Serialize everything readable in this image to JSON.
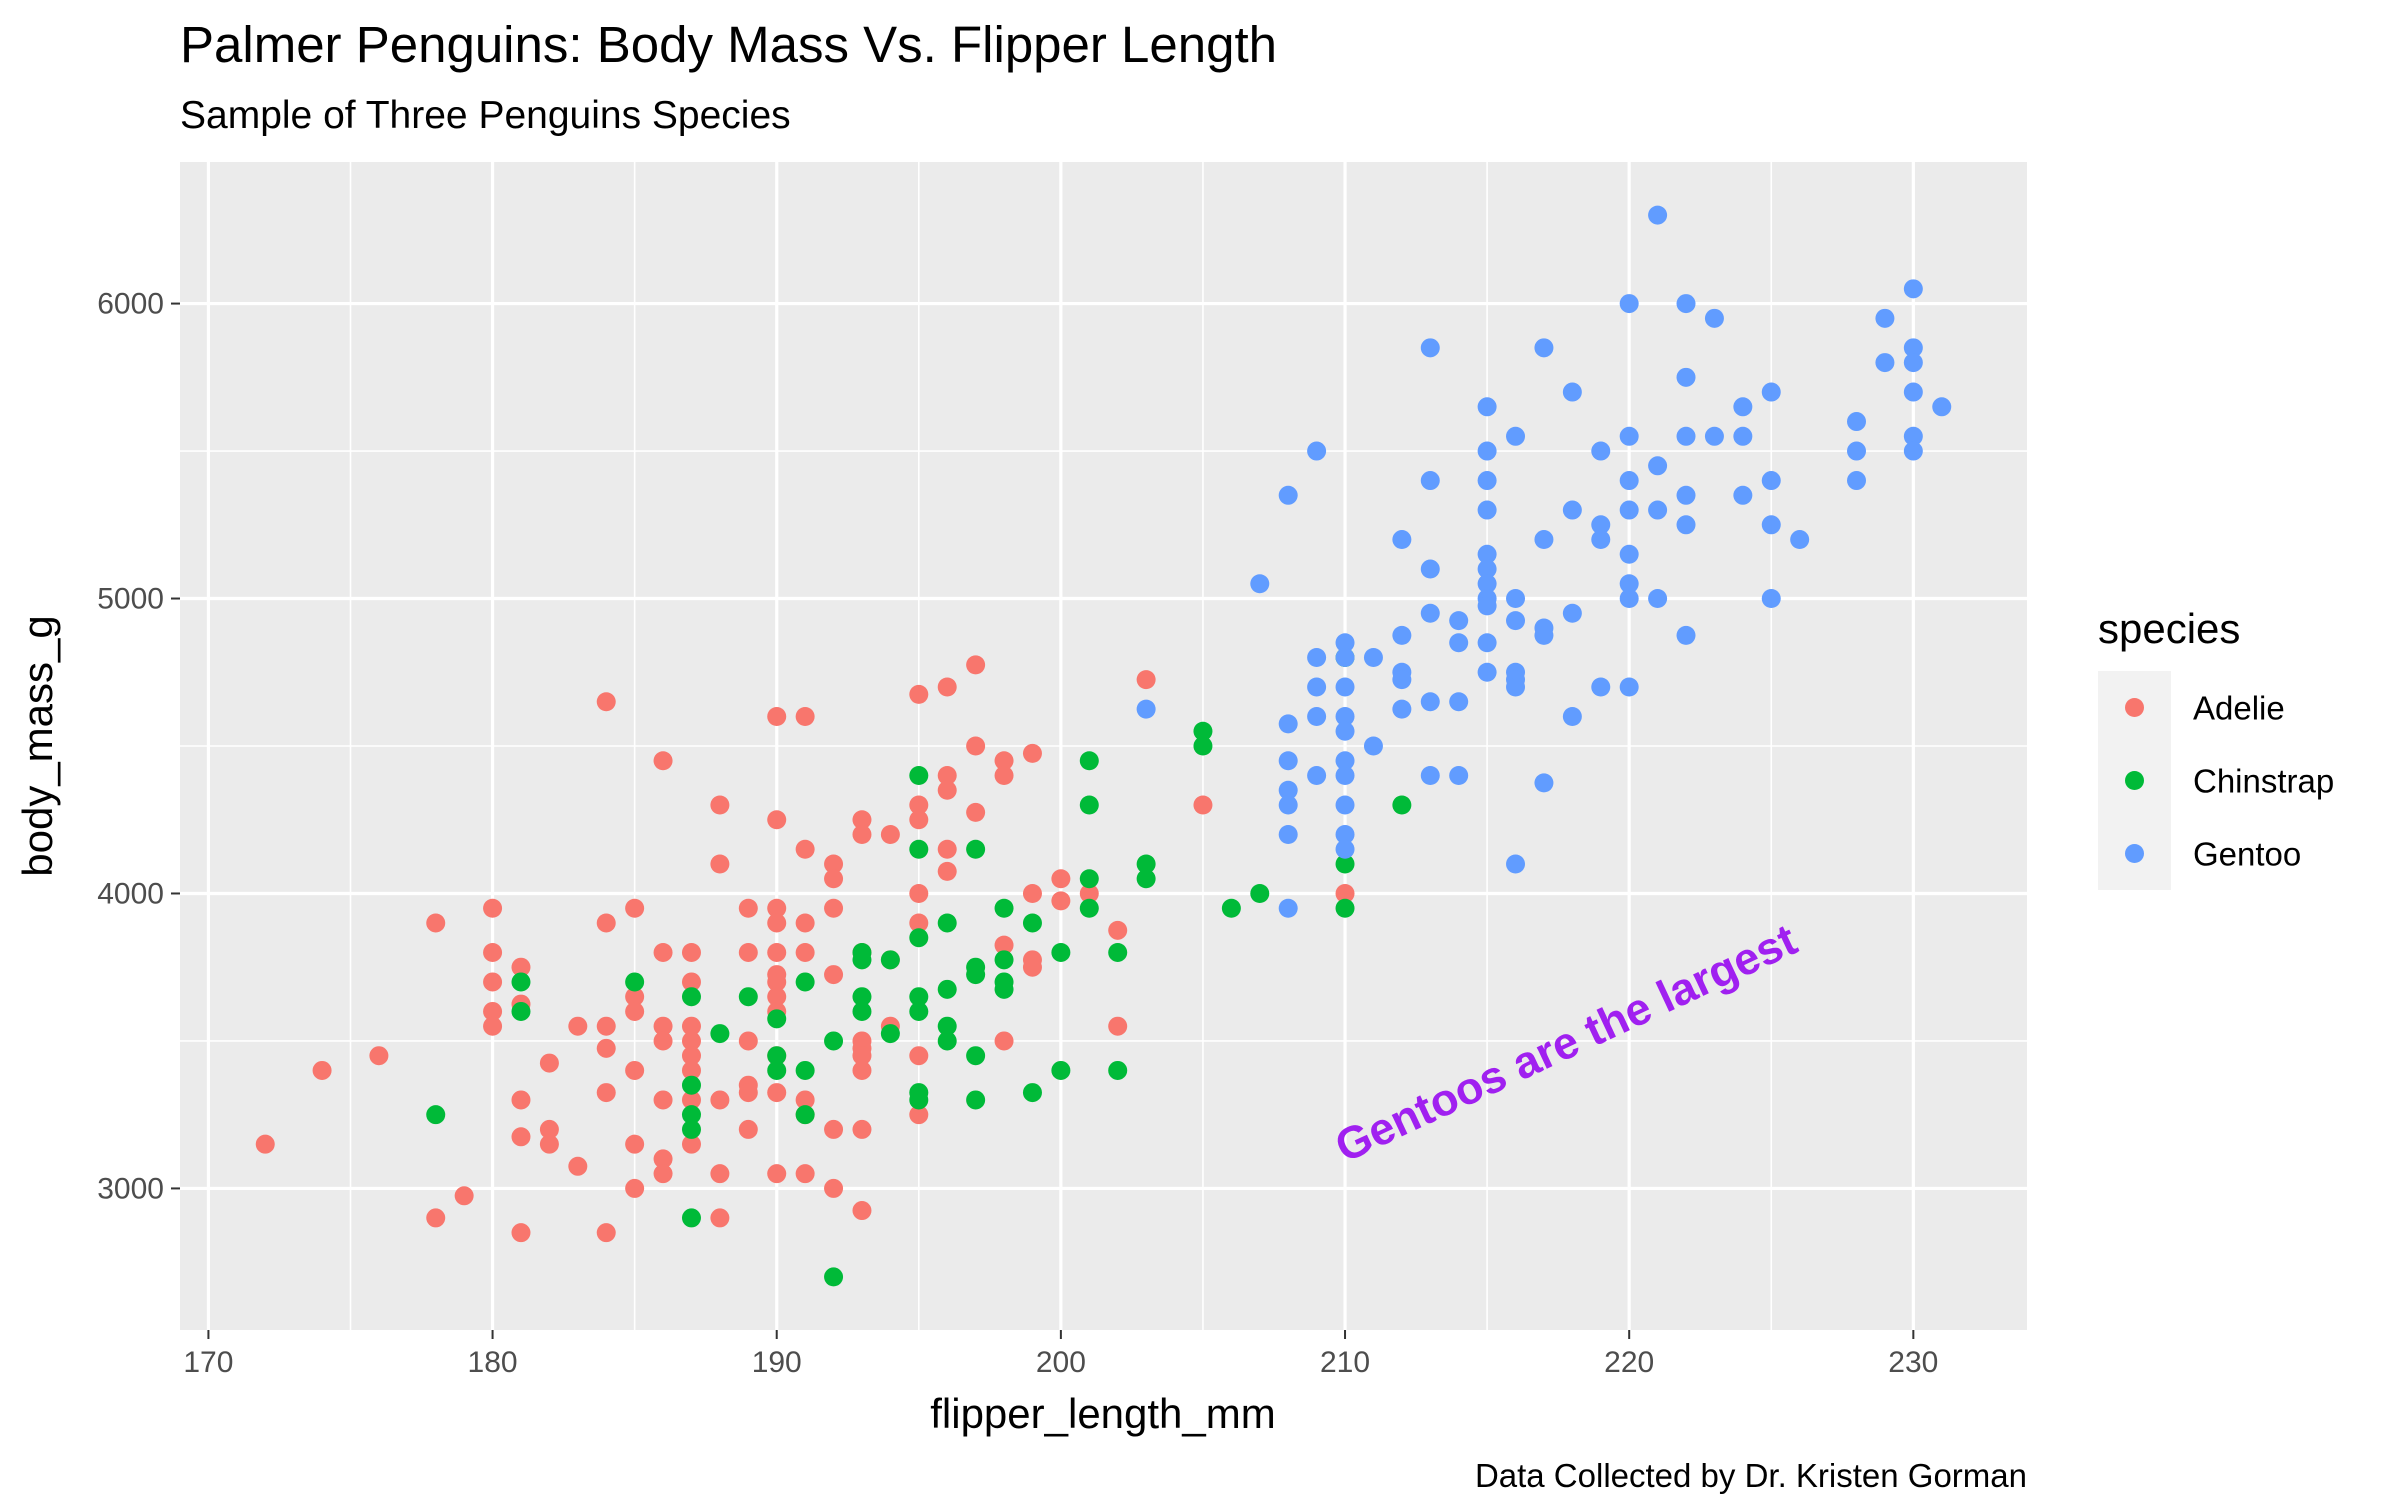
{
  "chart_data": {
    "type": "scatter",
    "title": "Palmer Penguins: Body Mass Vs. Flipper Length",
    "subtitle": "Sample of Three Penguins Species",
    "caption": "Data Collected by Dr. Kristen Gorman",
    "xlabel": "flipper_length_mm",
    "ylabel": "body_mass_g",
    "xlim": [
      169,
      234
    ],
    "ylim": [
      2520,
      6480
    ],
    "x_ticks": [
      170,
      180,
      190,
      200,
      210,
      220,
      230
    ],
    "y_ticks": [
      3000,
      4000,
      5000,
      6000
    ],
    "grid": true,
    "legend": {
      "title": "species",
      "position": "right"
    },
    "annotation": {
      "text": "Gentoos are the largest",
      "x": 218,
      "y": 3500,
      "color": "#A020F0"
    },
    "series": [
      {
        "name": "Adelie",
        "color": "#F8766D",
        "points": [
          [
            172,
            3150
          ],
          [
            174,
            3400
          ],
          [
            176,
            3450
          ],
          [
            178,
            3900
          ],
          [
            178,
            2900
          ],
          [
            179,
            2975
          ],
          [
            180,
            3950
          ],
          [
            180,
            3800
          ],
          [
            180,
            3700
          ],
          [
            180,
            3600
          ],
          [
            180,
            3550
          ],
          [
            181,
            3750
          ],
          [
            181,
            3625
          ],
          [
            181,
            3300
          ],
          [
            181,
            3175
          ],
          [
            181,
            2850
          ],
          [
            182,
            3425
          ],
          [
            182,
            3200
          ],
          [
            182,
            3150
          ],
          [
            183,
            3550
          ],
          [
            183,
            3075
          ],
          [
            184,
            4650
          ],
          [
            184,
            3900
          ],
          [
            184,
            3550
          ],
          [
            184,
            3475
          ],
          [
            184,
            3325
          ],
          [
            184,
            2850
          ],
          [
            185,
            3950
          ],
          [
            185,
            3650
          ],
          [
            185,
            3600
          ],
          [
            185,
            3400
          ],
          [
            185,
            3150
          ],
          [
            185,
            3000
          ],
          [
            186,
            4450
          ],
          [
            186,
            3800
          ],
          [
            186,
            3550
          ],
          [
            186,
            3500
          ],
          [
            186,
            3300
          ],
          [
            186,
            3100
          ],
          [
            186,
            3050
          ],
          [
            187,
            3800
          ],
          [
            187,
            3700
          ],
          [
            187,
            3550
          ],
          [
            187,
            3500
          ],
          [
            187,
            3450
          ],
          [
            187,
            3400
          ],
          [
            187,
            3300
          ],
          [
            187,
            3150
          ],
          [
            188,
            4300
          ],
          [
            188,
            4100
          ],
          [
            188,
            3300
          ],
          [
            188,
            3050
          ],
          [
            188,
            2900
          ],
          [
            189,
            3950
          ],
          [
            189,
            3800
          ],
          [
            189,
            3500
          ],
          [
            189,
            3350
          ],
          [
            189,
            3325
          ],
          [
            189,
            3200
          ],
          [
            190,
            4600
          ],
          [
            190,
            4250
          ],
          [
            190,
            3950
          ],
          [
            190,
            3900
          ],
          [
            190,
            3800
          ],
          [
            190,
            3725
          ],
          [
            190,
            3700
          ],
          [
            190,
            3650
          ],
          [
            190,
            3600
          ],
          [
            190,
            3450
          ],
          [
            190,
            3325
          ],
          [
            190,
            3050
          ],
          [
            191,
            4600
          ],
          [
            191,
            4150
          ],
          [
            191,
            3900
          ],
          [
            191,
            3800
          ],
          [
            191,
            3300
          ],
          [
            191,
            3250
          ],
          [
            191,
            3050
          ],
          [
            192,
            4100
          ],
          [
            192,
            4050
          ],
          [
            192,
            3950
          ],
          [
            192,
            3725
          ],
          [
            192,
            3200
          ],
          [
            192,
            3000
          ],
          [
            193,
            4250
          ],
          [
            193,
            4200
          ],
          [
            193,
            3800
          ],
          [
            193,
            3500
          ],
          [
            193,
            3475
          ],
          [
            193,
            3450
          ],
          [
            193,
            3400
          ],
          [
            193,
            3200
          ],
          [
            193,
            2925
          ],
          [
            194,
            4200
          ],
          [
            194,
            3775
          ],
          [
            194,
            3550
          ],
          [
            195,
            4675
          ],
          [
            195,
            4300
          ],
          [
            195,
            4250
          ],
          [
            195,
            4000
          ],
          [
            195,
            3900
          ],
          [
            195,
            3450
          ],
          [
            195,
            3250
          ],
          [
            196,
            4700
          ],
          [
            196,
            4400
          ],
          [
            196,
            4350
          ],
          [
            196,
            4150
          ],
          [
            196,
            4075
          ],
          [
            197,
            4775
          ],
          [
            197,
            4500
          ],
          [
            197,
            4275
          ],
          [
            198,
            4450
          ],
          [
            198,
            4400
          ],
          [
            198,
            3825
          ],
          [
            198,
            3500
          ],
          [
            199,
            4475
          ],
          [
            199,
            4000
          ],
          [
            199,
            3775
          ],
          [
            199,
            3750
          ],
          [
            200,
            4050
          ],
          [
            200,
            3975
          ],
          [
            201,
            4000
          ],
          [
            202,
            3875
          ],
          [
            202,
            3550
          ],
          [
            203,
            4725
          ],
          [
            205,
            4300
          ],
          [
            210,
            4000
          ]
        ]
      },
      {
        "name": "Chinstrap",
        "color": "#00BA38",
        "points": [
          [
            178,
            3250
          ],
          [
            181,
            3700
          ],
          [
            181,
            3600
          ],
          [
            185,
            3700
          ],
          [
            187,
            3650
          ],
          [
            187,
            3350
          ],
          [
            187,
            3250
          ],
          [
            187,
            3200
          ],
          [
            187,
            2900
          ],
          [
            188,
            3525
          ],
          [
            189,
            3650
          ],
          [
            190,
            3575
          ],
          [
            190,
            3450
          ],
          [
            190,
            3400
          ],
          [
            191,
            3700
          ],
          [
            191,
            3400
          ],
          [
            191,
            3250
          ],
          [
            192,
            3500
          ],
          [
            192,
            2700
          ],
          [
            193,
            3800
          ],
          [
            193,
            3775
          ],
          [
            193,
            3650
          ],
          [
            193,
            3600
          ],
          [
            194,
            3775
          ],
          [
            194,
            3525
          ],
          [
            195,
            4400
          ],
          [
            195,
            4150
          ],
          [
            195,
            3850
          ],
          [
            195,
            3650
          ],
          [
            195,
            3600
          ],
          [
            195,
            3325
          ],
          [
            195,
            3300
          ],
          [
            196,
            3900
          ],
          [
            196,
            3675
          ],
          [
            196,
            3550
          ],
          [
            196,
            3500
          ],
          [
            197,
            4150
          ],
          [
            197,
            3750
          ],
          [
            197,
            3725
          ],
          [
            197,
            3450
          ],
          [
            197,
            3300
          ],
          [
            198,
            3950
          ],
          [
            198,
            3775
          ],
          [
            198,
            3700
          ],
          [
            198,
            3675
          ],
          [
            199,
            3900
          ],
          [
            199,
            3325
          ],
          [
            200,
            3800
          ],
          [
            200,
            3400
          ],
          [
            201,
            4450
          ],
          [
            201,
            4300
          ],
          [
            201,
            4050
          ],
          [
            201,
            3950
          ],
          [
            202,
            3800
          ],
          [
            202,
            3400
          ],
          [
            203,
            4100
          ],
          [
            203,
            4050
          ],
          [
            205,
            4550
          ],
          [
            205,
            4500
          ],
          [
            206,
            3950
          ],
          [
            207,
            4000
          ],
          [
            210,
            4800
          ],
          [
            210,
            4100
          ],
          [
            210,
            3950
          ],
          [
            212,
            4300
          ]
        ]
      },
      {
        "name": "Gentoo",
        "color": "#619CFF",
        "points": [
          [
            203,
            4625
          ],
          [
            207,
            5050
          ],
          [
            208,
            5350
          ],
          [
            208,
            4575
          ],
          [
            208,
            4450
          ],
          [
            208,
            4350
          ],
          [
            208,
            4300
          ],
          [
            208,
            4200
          ],
          [
            208,
            3950
          ],
          [
            209,
            5500
          ],
          [
            209,
            4800
          ],
          [
            209,
            4700
          ],
          [
            209,
            4600
          ],
          [
            209,
            4400
          ],
          [
            210,
            4850
          ],
          [
            210,
            4800
          ],
          [
            210,
            4700
          ],
          [
            210,
            4600
          ],
          [
            210,
            4550
          ],
          [
            210,
            4450
          ],
          [
            210,
            4400
          ],
          [
            210,
            4300
          ],
          [
            210,
            4200
          ],
          [
            210,
            4150
          ],
          [
            211,
            4800
          ],
          [
            211,
            4500
          ],
          [
            212,
            5200
          ],
          [
            212,
            4875
          ],
          [
            212,
            4750
          ],
          [
            212,
            4725
          ],
          [
            212,
            4625
          ],
          [
            213,
            5850
          ],
          [
            213,
            5400
          ],
          [
            213,
            5100
          ],
          [
            213,
            4950
          ],
          [
            213,
            4650
          ],
          [
            213,
            4400
          ],
          [
            214,
            4925
          ],
          [
            214,
            4850
          ],
          [
            214,
            4650
          ],
          [
            214,
            4400
          ],
          [
            215,
            5650
          ],
          [
            215,
            5500
          ],
          [
            215,
            5400
          ],
          [
            215,
            5300
          ],
          [
            215,
            5150
          ],
          [
            215,
            5100
          ],
          [
            215,
            5050
          ],
          [
            215,
            5000
          ],
          [
            215,
            4975
          ],
          [
            215,
            4850
          ],
          [
            215,
            4750
          ],
          [
            216,
            5550
          ],
          [
            216,
            5000
          ],
          [
            216,
            4925
          ],
          [
            216,
            4750
          ],
          [
            216,
            4725
          ],
          [
            216,
            4700
          ],
          [
            216,
            4100
          ],
          [
            217,
            5850
          ],
          [
            217,
            5200
          ],
          [
            217,
            4900
          ],
          [
            217,
            4875
          ],
          [
            217,
            4375
          ],
          [
            218,
            5700
          ],
          [
            218,
            5300
          ],
          [
            218,
            4950
          ],
          [
            218,
            4600
          ],
          [
            219,
            5500
          ],
          [
            219,
            5250
          ],
          [
            219,
            5200
          ],
          [
            219,
            4700
          ],
          [
            220,
            6000
          ],
          [
            220,
            5550
          ],
          [
            220,
            5400
          ],
          [
            220,
            5300
          ],
          [
            220,
            5150
          ],
          [
            220,
            5050
          ],
          [
            220,
            5000
          ],
          [
            220,
            4700
          ],
          [
            221,
            6300
          ],
          [
            221,
            5450
          ],
          [
            221,
            5300
          ],
          [
            221,
            5000
          ],
          [
            222,
            6000
          ],
          [
            222,
            5750
          ],
          [
            222,
            5550
          ],
          [
            222,
            5350
          ],
          [
            222,
            5250
          ],
          [
            222,
            4875
          ],
          [
            223,
            5950
          ],
          [
            223,
            5550
          ],
          [
            224,
            5650
          ],
          [
            224,
            5550
          ],
          [
            224,
            5350
          ],
          [
            225,
            5700
          ],
          [
            225,
            5400
          ],
          [
            225,
            5250
          ],
          [
            225,
            5000
          ],
          [
            226,
            5200
          ],
          [
            228,
            5600
          ],
          [
            228,
            5500
          ],
          [
            228,
            5400
          ],
          [
            229,
            5950
          ],
          [
            229,
            5800
          ],
          [
            230,
            6050
          ],
          [
            230,
            5850
          ],
          [
            230,
            5800
          ],
          [
            230,
            5700
          ],
          [
            230,
            5550
          ],
          [
            230,
            5500
          ],
          [
            231,
            5650
          ]
        ]
      }
    ]
  }
}
